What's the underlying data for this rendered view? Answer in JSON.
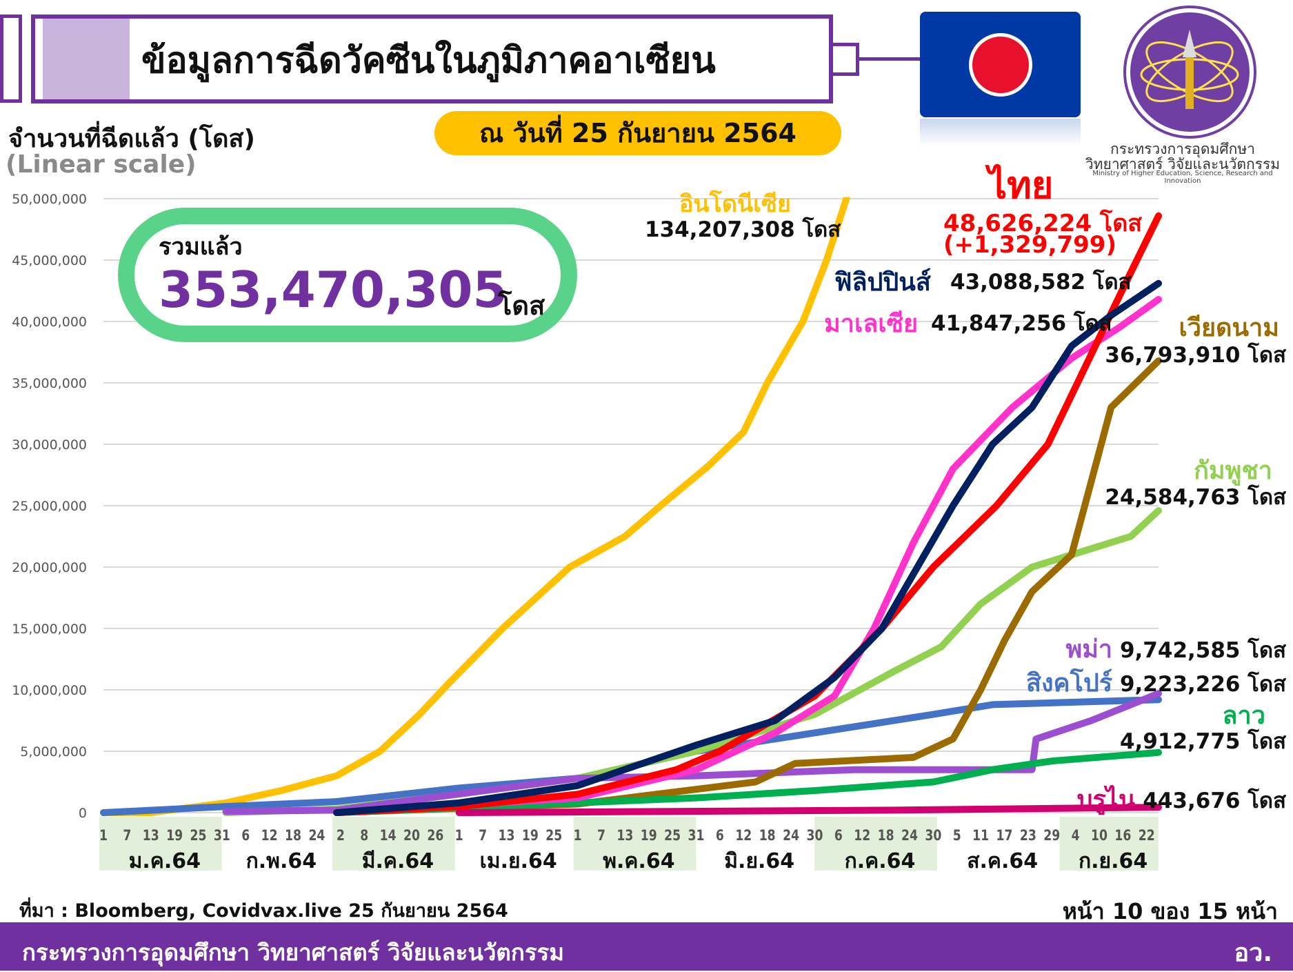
{
  "header": {
    "title": "ข้อมูลการฉีดวัคซีนในภูมิภาคอาเซียน",
    "date": "ณ วันที่ 25 กันยายน 2564"
  },
  "logo": {
    "line1": "กระทรวงการอุดมศึกษา",
    "line2": "วิทยาศาสตร์ วิจัยและนวัตกรรม",
    "line3": "Ministry of Higher Education, Science, Research and Innovation"
  },
  "total": {
    "label": "รวมแล้ว",
    "value": "353,470,305",
    "unit": "โดส"
  },
  "chart_data": {
    "type": "line",
    "title": "ข้อมูลการฉีดวัคซีนในภูมิภาคอาเซียน",
    "ylabel": "จำนวนที่ฉีดแล้ว (โดส)",
    "yscale_note": "(Linear scale)",
    "ylim": [
      0,
      50000000
    ],
    "yticks": [
      "0",
      "5,000,000",
      "10,000,000",
      "15,000,000",
      "20,000,000",
      "25,000,000",
      "30,000,000",
      "35,000,000",
      "40,000,000",
      "45,000,000",
      "50,000,000"
    ],
    "xlim_days": [
      0,
      267
    ],
    "x_tick_labels": [
      "1",
      "7",
      "13",
      "19",
      "25",
      "31",
      "6",
      "12",
      "18",
      "24",
      "2",
      "8",
      "14",
      "20",
      "26",
      "1",
      "7",
      "13",
      "19",
      "25",
      "1",
      "7",
      "13",
      "19",
      "25",
      "31",
      "6",
      "12",
      "18",
      "24",
      "30",
      "6",
      "12",
      "18",
      "24",
      "30",
      "5",
      "11",
      "17",
      "23",
      "29",
      "4",
      "10",
      "16",
      "22"
    ],
    "months": [
      {
        "label": "ม.ค.64",
        "start": 0,
        "end": 31,
        "shade": true
      },
      {
        "label": "ก.พ.64",
        "start": 31,
        "end": 59,
        "shade": false
      },
      {
        "label": "มี.ค.64",
        "start": 59,
        "end": 90,
        "shade": true
      },
      {
        "label": "เม.ย.64",
        "start": 90,
        "end": 120,
        "shade": false
      },
      {
        "label": "พ.ค.64",
        "start": 120,
        "end": 151,
        "shade": true
      },
      {
        "label": "มิ.ย.64",
        "start": 151,
        "end": 181,
        "shade": false
      },
      {
        "label": "ก.ค.64",
        "start": 181,
        "end": 212,
        "shade": true
      },
      {
        "label": "ส.ค.64",
        "start": 212,
        "end": 243,
        "shade": false
      },
      {
        "label": "ก.ย.64",
        "start": 243,
        "end": 268,
        "shade": true
      }
    ],
    "series": [
      {
        "name": "อินโดนีเซีย",
        "value_label": "134,207,308 โดส",
        "color": "#FFC000",
        "points_millions": [
          [
            0,
            0
          ],
          [
            12,
            0
          ],
          [
            31,
            0.8
          ],
          [
            45,
            1.8
          ],
          [
            59,
            3
          ],
          [
            70,
            5
          ],
          [
            80,
            8
          ],
          [
            87,
            10.4
          ],
          [
            101,
            15
          ],
          [
            118,
            20
          ],
          [
            132,
            22.5
          ],
          [
            141,
            25
          ],
          [
            153,
            28.2
          ],
          [
            162,
            31
          ],
          [
            168,
            35
          ],
          [
            177,
            40
          ],
          [
            183,
            45
          ],
          [
            188,
            50
          ],
          [
            192,
            55
          ]
        ]
      },
      {
        "name": "สิงคโปร์",
        "value_label": "9,223,226 โดส",
        "color": "#4472C4",
        "points_millions": [
          [
            0,
            0
          ],
          [
            31,
            0.5
          ],
          [
            59,
            0.9
          ],
          [
            90,
            2
          ],
          [
            120,
            2.8
          ],
          [
            150,
            5
          ],
          [
            180,
            6.5
          ],
          [
            210,
            8
          ],
          [
            225,
            8.8
          ],
          [
            267,
            9.2
          ]
        ]
      },
      {
        "name": "กัมพูชา",
        "value_label": "24,584,763 โดส",
        "color": "#92D050",
        "points_millions": [
          [
            31,
            0
          ],
          [
            59,
            0.3
          ],
          [
            90,
            1.5
          ],
          [
            120,
            2.8
          ],
          [
            150,
            5
          ],
          [
            180,
            8
          ],
          [
            200,
            11.5
          ],
          [
            212,
            13.5
          ],
          [
            222,
            17
          ],
          [
            235,
            20
          ],
          [
            250,
            21.5
          ],
          [
            260,
            22.5
          ],
          [
            267,
            24.6
          ]
        ]
      },
      {
        "name": "พม่า",
        "value_label": "9,742,585 โดส",
        "color": "#9B4FD0",
        "points_millions": [
          [
            31,
            0.1
          ],
          [
            59,
            0.2
          ],
          [
            120,
            2.8
          ],
          [
            150,
            3
          ],
          [
            190,
            3.5
          ],
          [
            235,
            3.5
          ],
          [
            236,
            6
          ],
          [
            250,
            7.5
          ],
          [
            267,
            9.7
          ]
        ]
      },
      {
        "name": "เวียดนาม",
        "value_label": "36,793,910 โดส",
        "color": "#9C6B00",
        "points_millions": [
          [
            59,
            0
          ],
          [
            120,
            0.7
          ],
          [
            165,
            2.5
          ],
          [
            175,
            4
          ],
          [
            205,
            4.5
          ],
          [
            215,
            6
          ],
          [
            222,
            10
          ],
          [
            228,
            14
          ],
          [
            235,
            18
          ],
          [
            245,
            21
          ],
          [
            250,
            27
          ],
          [
            255,
            33
          ],
          [
            267,
            36.8
          ]
        ]
      },
      {
        "name": "ลาว",
        "value_label": "4,912,775 โดส",
        "color": "#00B050",
        "points_millions": [
          [
            59,
            0
          ],
          [
            120,
            0.8
          ],
          [
            150,
            1.2
          ],
          [
            180,
            1.8
          ],
          [
            210,
            2.5
          ],
          [
            225,
            3.5
          ],
          [
            240,
            4.2
          ],
          [
            267,
            4.9
          ]
        ]
      },
      {
        "name": "บรูไน",
        "value_label": "443,676 โดส",
        "color": "#D00070",
        "points_millions": [
          [
            90,
            0
          ],
          [
            200,
            0.2
          ],
          [
            267,
            0.44
          ]
        ]
      },
      {
        "name": "มาเลเซีย",
        "value_label": "41,847,256 โดส",
        "color": "#FF33CC",
        "points_millions": [
          [
            59,
            0
          ],
          [
            120,
            1.2
          ],
          [
            150,
            3.5
          ],
          [
            170,
            6.5
          ],
          [
            185,
            9.5
          ],
          [
            195,
            15
          ],
          [
            205,
            22
          ],
          [
            215,
            28
          ],
          [
            230,
            33
          ],
          [
            245,
            37
          ],
          [
            257,
            39.5
          ],
          [
            267,
            41.8
          ]
        ]
      },
      {
        "name": "ไทย",
        "value_label": "48,626,224 โดส",
        "daily_label": "(+1,329,799)",
        "color": "#FF0000",
        "points_millions": [
          [
            59,
            0
          ],
          [
            90,
            0.5
          ],
          [
            120,
            1.5
          ],
          [
            145,
            3.5
          ],
          [
            156,
            5
          ],
          [
            180,
            9.5
          ],
          [
            197,
            15
          ],
          [
            210,
            20
          ],
          [
            226,
            25
          ],
          [
            239,
            30
          ],
          [
            251,
            38
          ],
          [
            260,
            44
          ],
          [
            267,
            48.6
          ]
        ]
      },
      {
        "name": "ฟิลิปปินส์",
        "value_label": "43,088,582 โดส",
        "color": "#002060",
        "points_millions": [
          [
            59,
            0
          ],
          [
            90,
            0.8
          ],
          [
            120,
            2.2
          ],
          [
            150,
            5.5
          ],
          [
            170,
            7.5
          ],
          [
            185,
            11
          ],
          [
            197,
            15
          ],
          [
            206,
            20
          ],
          [
            215,
            25
          ],
          [
            225,
            30
          ],
          [
            235,
            33
          ],
          [
            245,
            38
          ],
          [
            255,
            40.5
          ],
          [
            267,
            43.1
          ]
        ]
      }
    ]
  },
  "footer": {
    "source": "ที่มา : Bloomberg, Covidvax.live 25 กันยายน 2564",
    "page": "หน้า 10 ของ 15 หน้า",
    "org": "กระทรวงการอุดมศึกษา วิทยาศาสตร์ วิจัยและนวัตกรรม",
    "org_short": "อว."
  }
}
